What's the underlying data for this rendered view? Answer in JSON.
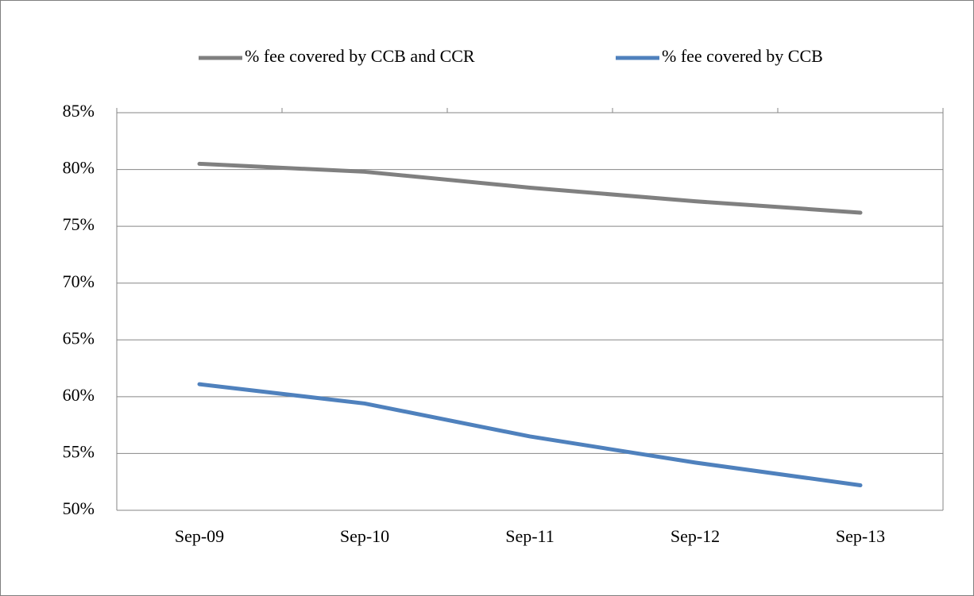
{
  "chart_data": {
    "type": "line",
    "categories": [
      "Sep-09",
      "Sep-10",
      "Sep-11",
      "Sep-12",
      "Sep-13"
    ],
    "series": [
      {
        "name": "% fee covered by CCB and CCR",
        "color": "#808080",
        "values": [
          80.5,
          79.8,
          78.4,
          77.2,
          76.2
        ]
      },
      {
        "name": "% fee covered by CCB",
        "color": "#4f81bd",
        "values": [
          61.1,
          59.4,
          56.5,
          54.2,
          52.2
        ]
      }
    ],
    "ylim": [
      50,
      85
    ],
    "yticks": [
      {
        "value": 50,
        "label": "50%"
      },
      {
        "value": 55,
        "label": "55%"
      },
      {
        "value": 60,
        "label": "60%"
      },
      {
        "value": 65,
        "label": "65%"
      },
      {
        "value": 70,
        "label": "70%"
      },
      {
        "value": 75,
        "label": "75%"
      },
      {
        "value": 80,
        "label": "80%"
      },
      {
        "value": 85,
        "label": "85%"
      }
    ],
    "grid": true,
    "legend": "top"
  }
}
